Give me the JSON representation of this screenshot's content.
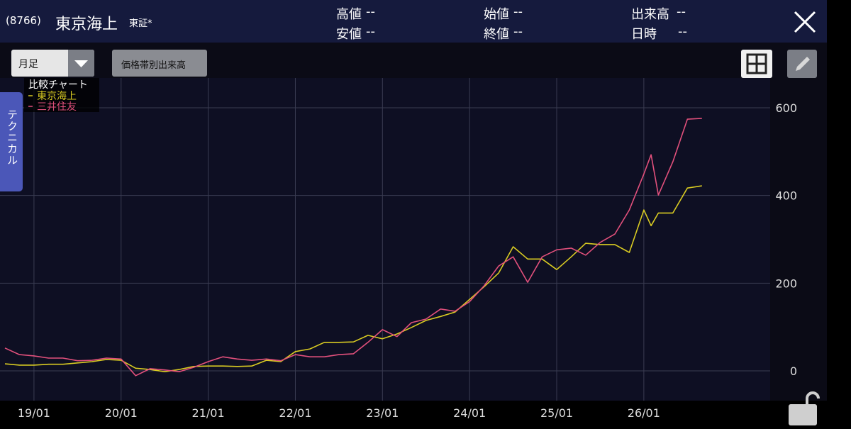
{
  "header": {
    "code": "(8766)",
    "name": "東京海上",
    "market": "東証*",
    "stats": [
      {
        "label": "高値",
        "value": "--"
      },
      {
        "label": "安値",
        "value": "--"
      },
      {
        "label": "始値",
        "value": "--"
      },
      {
        "label": "終値",
        "value": "--"
      },
      {
        "label": "出来高",
        "value": "--"
      },
      {
        "label": "日時",
        "value": "--"
      }
    ]
  },
  "toolbar": {
    "period": "月足",
    "volume_button": "価格帯別出来高"
  },
  "side_tab": "テクニカル",
  "chart_data": {
    "type": "line",
    "legend_title": "比較チャート",
    "x": [
      2018.667,
      2018.833,
      2019.0,
      2019.167,
      2019.333,
      2019.5,
      2019.667,
      2019.833,
      2020.0,
      2020.167,
      2020.333,
      2020.5,
      2020.667,
      2020.833,
      2021.0,
      2021.167,
      2021.333,
      2021.5,
      2021.667,
      2021.833,
      2022.0,
      2022.167,
      2022.333,
      2022.5,
      2022.667,
      2022.833,
      2023.0,
      2023.167,
      2023.333,
      2023.5,
      2023.667,
      2023.833,
      2024.0,
      2024.167,
      2024.333,
      2024.5,
      2024.667,
      2024.833,
      2025.0,
      2025.167,
      2025.333,
      2025.5,
      2025.667,
      2025.833,
      2026.0,
      2026.083,
      2026.167,
      2026.333,
      2026.5,
      2026.667
    ],
    "series": [
      {
        "name": "東京海上",
        "color": "#d9cb22",
        "values": [
          16,
          13,
          13,
          15,
          15,
          18,
          21,
          26,
          24,
          6,
          3,
          -2,
          3,
          10,
          11,
          11,
          10,
          11,
          24,
          21,
          44,
          50,
          65,
          65,
          66,
          81,
          73,
          84,
          99,
          115,
          124,
          134,
          163,
          192,
          223,
          283,
          255,
          255,
          231,
          260,
          291,
          288,
          288,
          270,
          367,
          331,
          360,
          360,
          417,
          422
        ]
      },
      {
        "name": "三井住友",
        "color": "#e2507c",
        "values": [
          52,
          37,
          34,
          29,
          29,
          23,
          24,
          29,
          27,
          -11,
          5,
          2,
          -2,
          8,
          21,
          32,
          27,
          24,
          27,
          23,
          37,
          32,
          32,
          37,
          39,
          65,
          94,
          78,
          110,
          118,
          141,
          136,
          158,
          194,
          239,
          260,
          202,
          260,
          276,
          280,
          264,
          293,
          312,
          367,
          449,
          493,
          401,
          477,
          574,
          576
        ]
      }
    ],
    "xlim": [
      2018.61,
      2027.45
    ],
    "xticks": [
      {
        "value": 2019,
        "label": "19/01"
      },
      {
        "value": 2020,
        "label": "20/01"
      },
      {
        "value": 2021,
        "label": "21/01"
      },
      {
        "value": 2022,
        "label": "22/01"
      },
      {
        "value": 2023,
        "label": "23/01"
      },
      {
        "value": 2024,
        "label": "24/01"
      },
      {
        "value": 2025,
        "label": "25/01"
      },
      {
        "value": 2026,
        "label": "26/01"
      }
    ],
    "ylim": [
      -68,
      668
    ],
    "yticks": [
      0,
      200,
      400,
      600
    ],
    "grid": true
  }
}
